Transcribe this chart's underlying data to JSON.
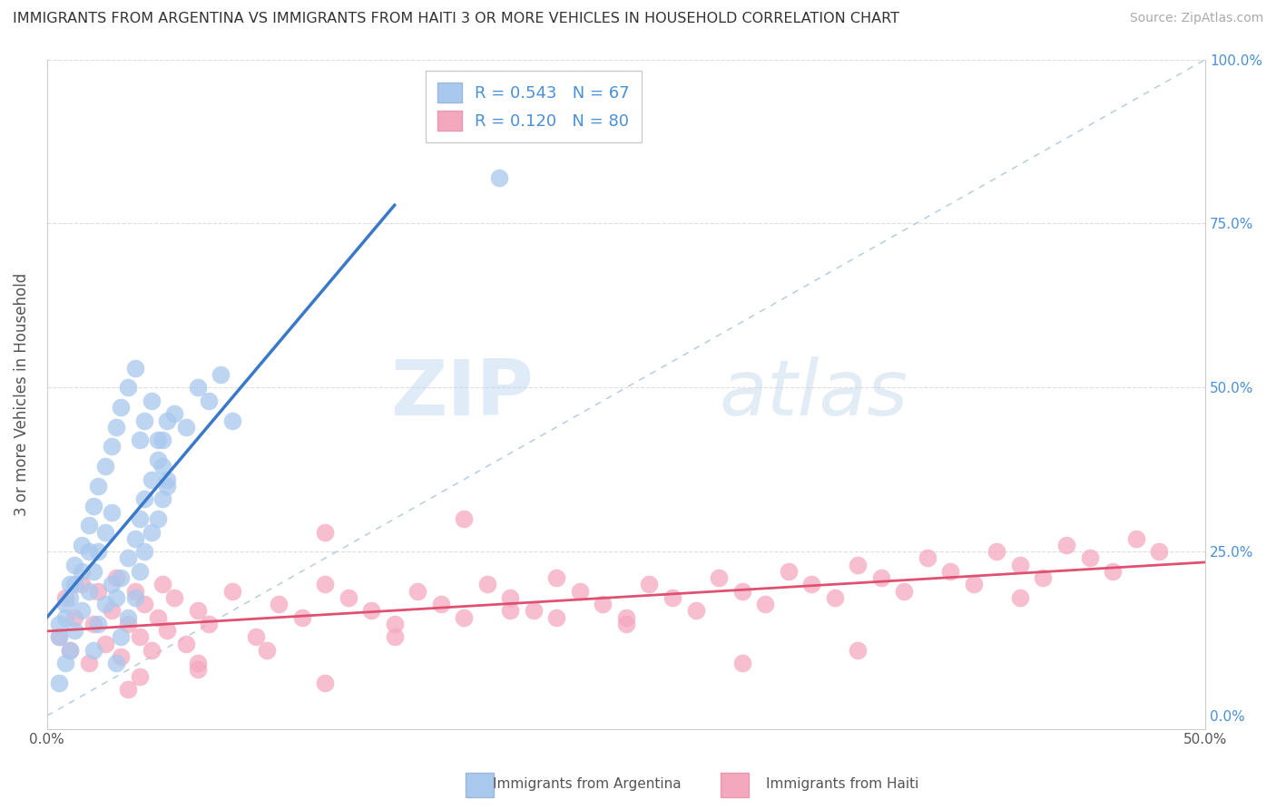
{
  "title": "IMMIGRANTS FROM ARGENTINA VS IMMIGRANTS FROM HAITI 3 OR MORE VEHICLES IN HOUSEHOLD CORRELATION CHART",
  "source": "Source: ZipAtlas.com",
  "ylabel": "3 or more Vehicles in Household",
  "legend_label1": "Immigrants from Argentina",
  "legend_label2": "Immigrants from Haiti",
  "R1": 0.543,
  "N1": 67,
  "R2": 0.12,
  "N2": 80,
  "xlim": [
    0.0,
    0.5
  ],
  "ylim": [
    -0.02,
    1.0
  ],
  "color_argentina": "#a8c8ee",
  "color_haiti": "#f4a8be",
  "color_argentina_line": "#3a78c9",
  "color_haiti_line": "#e05070",
  "color_diagonal": "#b0c8e0",
  "background_color": "#ffffff",
  "watermark_zip": "ZIP",
  "watermark_atlas": "atlas",
  "argentina_x": [
    0.005,
    0.008,
    0.01,
    0.012,
    0.015,
    0.018,
    0.02,
    0.022,
    0.025,
    0.028,
    0.03,
    0.032,
    0.035,
    0.038,
    0.04,
    0.042,
    0.045,
    0.048,
    0.05,
    0.052,
    0.005,
    0.008,
    0.01,
    0.012,
    0.015,
    0.018,
    0.02,
    0.022,
    0.025,
    0.028,
    0.03,
    0.032,
    0.035,
    0.038,
    0.04,
    0.042,
    0.045,
    0.048,
    0.05,
    0.052,
    0.005,
    0.008,
    0.01,
    0.012,
    0.015,
    0.018,
    0.02,
    0.022,
    0.025,
    0.028,
    0.03,
    0.032,
    0.035,
    0.038,
    0.04,
    0.042,
    0.045,
    0.048,
    0.05,
    0.052,
    0.055,
    0.06,
    0.065,
    0.07,
    0.075,
    0.08,
    0.195
  ],
  "argentina_y": [
    0.12,
    0.15,
    0.18,
    0.2,
    0.22,
    0.25,
    0.1,
    0.14,
    0.17,
    0.2,
    0.08,
    0.12,
    0.15,
    0.18,
    0.22,
    0.25,
    0.28,
    0.3,
    0.33,
    0.36,
    0.05,
    0.08,
    0.1,
    0.13,
    0.16,
    0.19,
    0.22,
    0.25,
    0.28,
    0.31,
    0.18,
    0.21,
    0.24,
    0.27,
    0.3,
    0.33,
    0.36,
    0.39,
    0.42,
    0.45,
    0.14,
    0.17,
    0.2,
    0.23,
    0.26,
    0.29,
    0.32,
    0.35,
    0.38,
    0.41,
    0.44,
    0.47,
    0.5,
    0.53,
    0.42,
    0.45,
    0.48,
    0.42,
    0.38,
    0.35,
    0.46,
    0.44,
    0.5,
    0.48,
    0.52,
    0.45,
    0.82
  ],
  "haiti_x": [
    0.005,
    0.008,
    0.01,
    0.012,
    0.015,
    0.018,
    0.02,
    0.022,
    0.025,
    0.028,
    0.03,
    0.032,
    0.035,
    0.038,
    0.04,
    0.042,
    0.045,
    0.048,
    0.05,
    0.052,
    0.055,
    0.06,
    0.065,
    0.07,
    0.08,
    0.09,
    0.1,
    0.11,
    0.12,
    0.13,
    0.14,
    0.15,
    0.16,
    0.17,
    0.18,
    0.19,
    0.2,
    0.21,
    0.22,
    0.23,
    0.24,
    0.25,
    0.26,
    0.27,
    0.28,
    0.29,
    0.3,
    0.31,
    0.32,
    0.33,
    0.34,
    0.35,
    0.36,
    0.37,
    0.38,
    0.39,
    0.4,
    0.41,
    0.42,
    0.43,
    0.44,
    0.45,
    0.46,
    0.47,
    0.48,
    0.12,
    0.18,
    0.22,
    0.12,
    0.065,
    0.095,
    0.035,
    0.065,
    0.15,
    0.25,
    0.35,
    0.04,
    0.2,
    0.3,
    0.42
  ],
  "haiti_y": [
    0.12,
    0.18,
    0.1,
    0.15,
    0.2,
    0.08,
    0.14,
    0.19,
    0.11,
    0.16,
    0.21,
    0.09,
    0.14,
    0.19,
    0.12,
    0.17,
    0.1,
    0.15,
    0.2,
    0.13,
    0.18,
    0.11,
    0.16,
    0.14,
    0.19,
    0.12,
    0.17,
    0.15,
    0.2,
    0.18,
    0.16,
    0.14,
    0.19,
    0.17,
    0.15,
    0.2,
    0.18,
    0.16,
    0.21,
    0.19,
    0.17,
    0.15,
    0.2,
    0.18,
    0.16,
    0.21,
    0.19,
    0.17,
    0.22,
    0.2,
    0.18,
    0.23,
    0.21,
    0.19,
    0.24,
    0.22,
    0.2,
    0.25,
    0.23,
    0.21,
    0.26,
    0.24,
    0.22,
    0.27,
    0.25,
    0.28,
    0.3,
    0.15,
    0.05,
    0.08,
    0.1,
    0.04,
    0.07,
    0.12,
    0.14,
    0.1,
    0.06,
    0.16,
    0.08,
    0.18
  ]
}
